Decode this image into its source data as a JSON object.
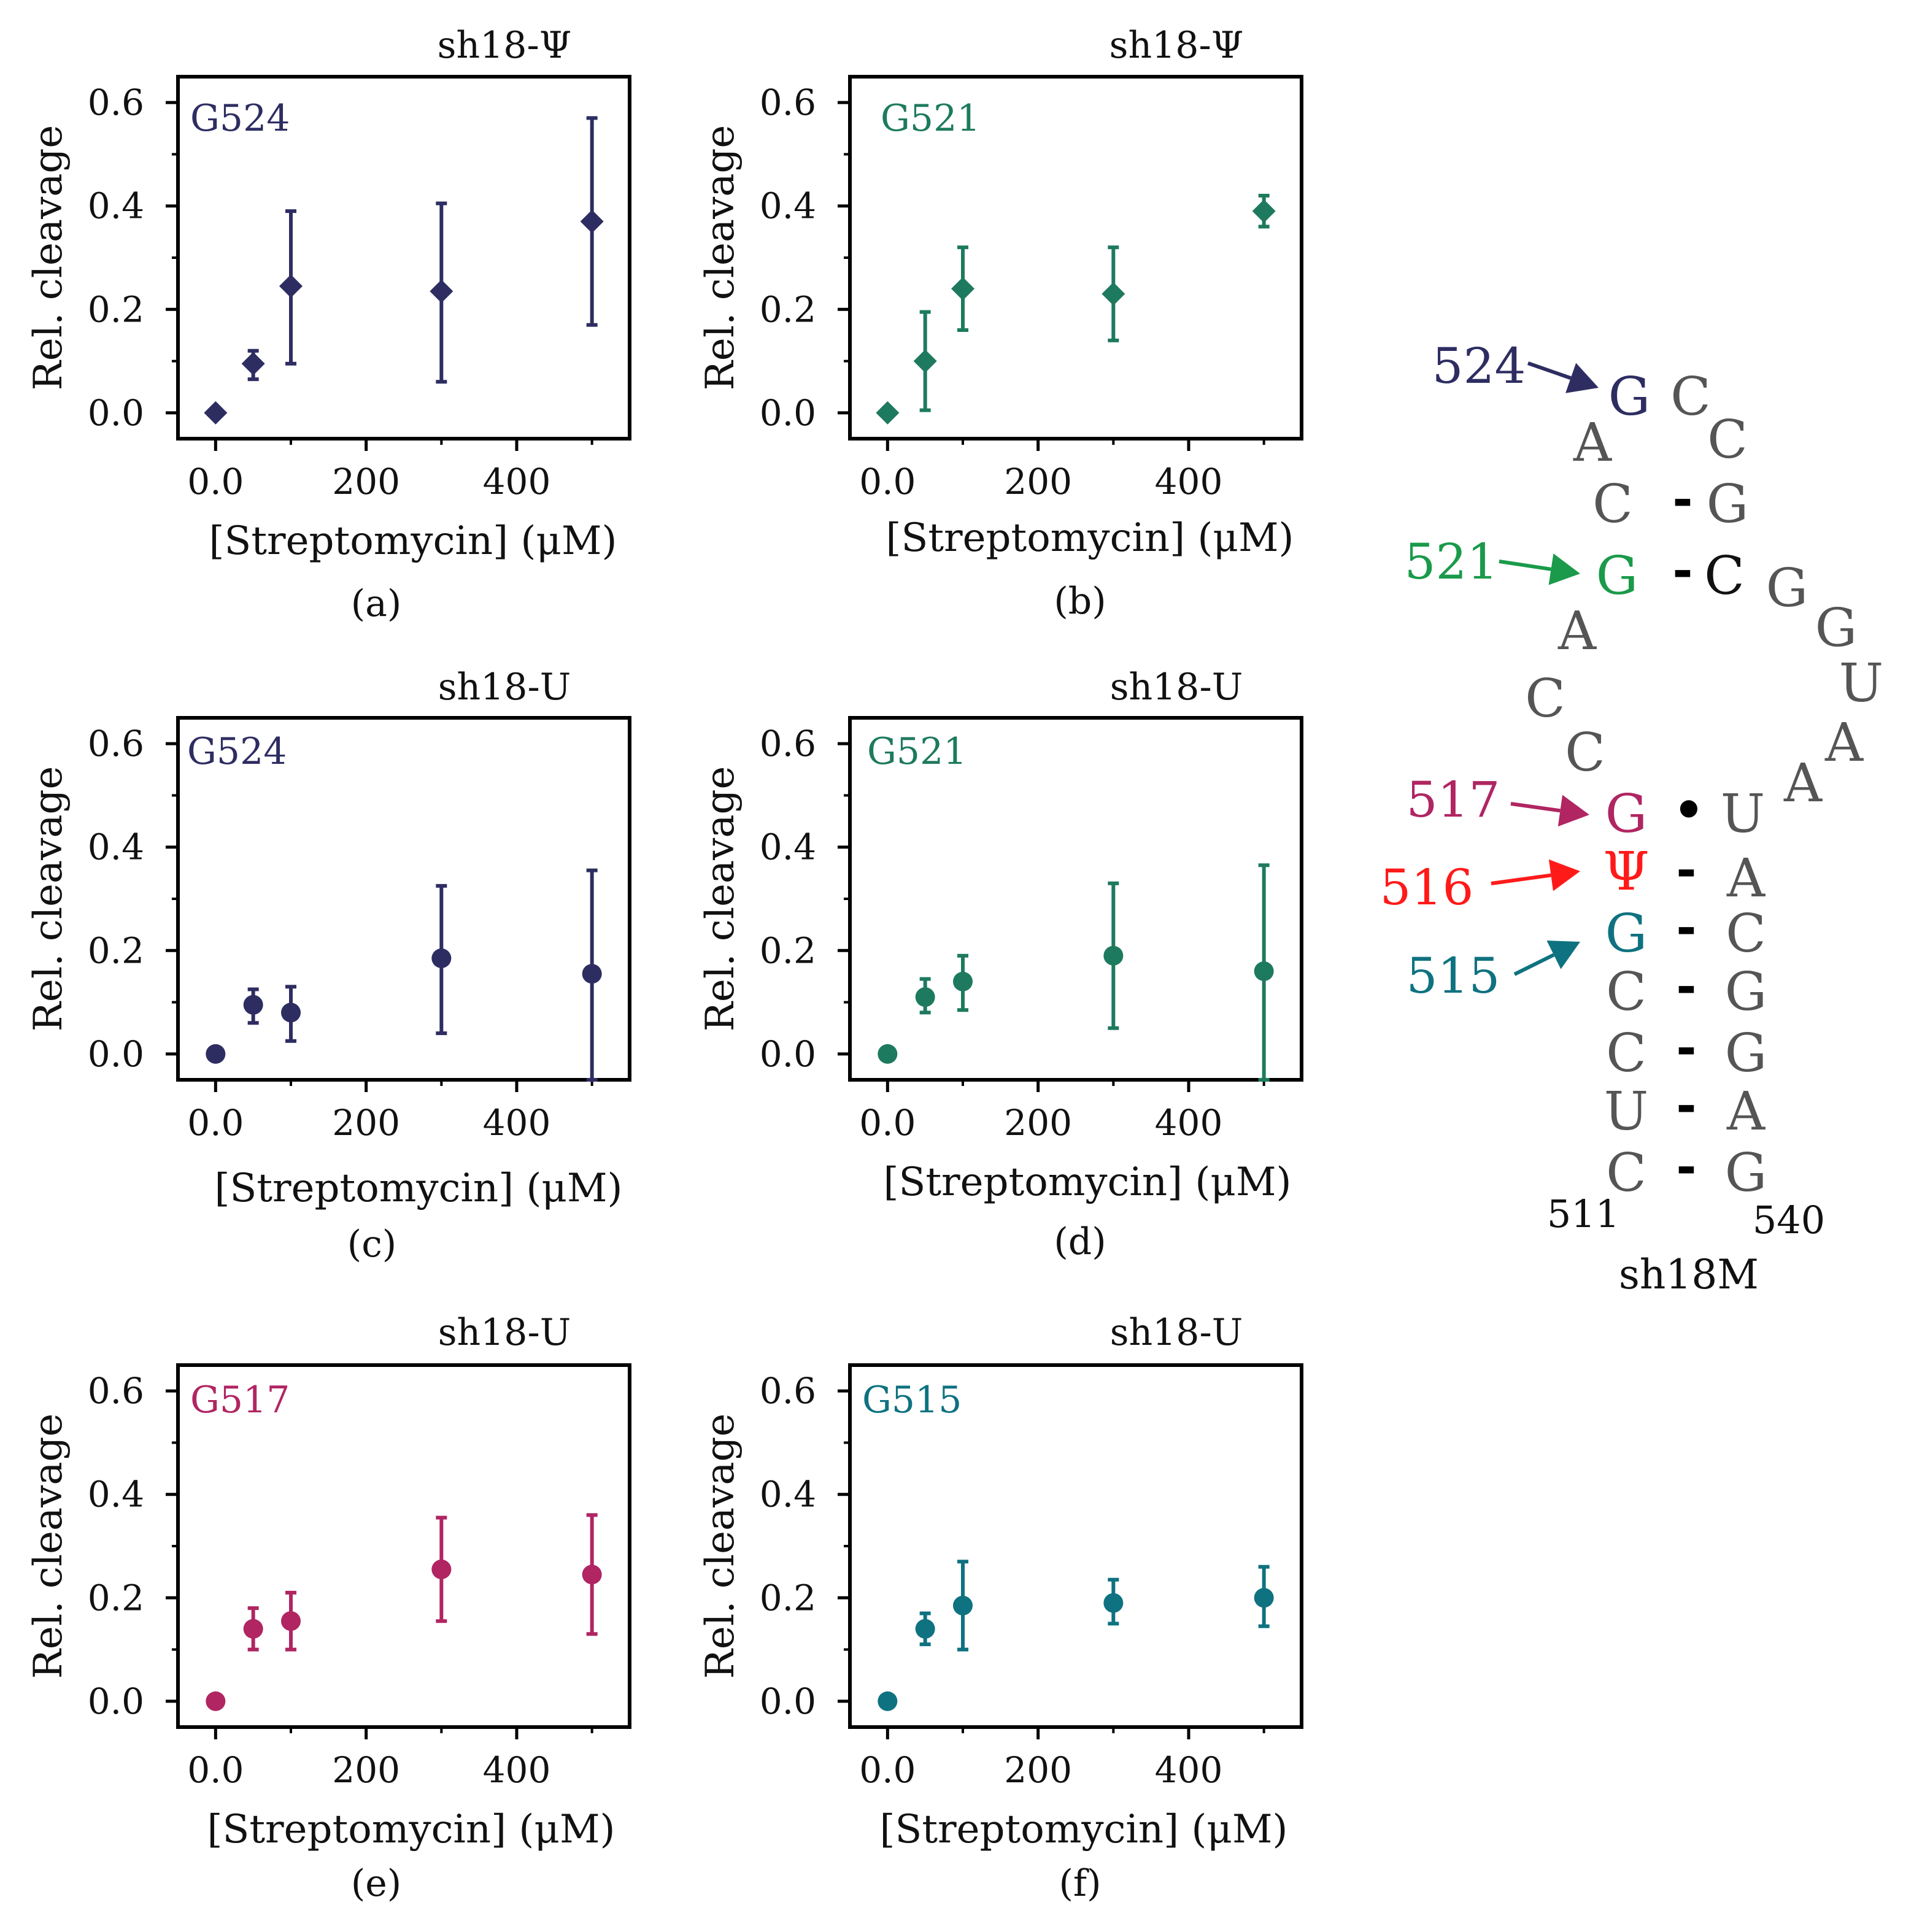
{
  "chart_data": [
    {
      "type": "scatter",
      "panel_label": "(a)",
      "title": "sh18-Ψ",
      "inset_label": "G524",
      "color": "#2e2d62",
      "marker": "diamond",
      "xlabel": "[Streptomycin] (μM)",
      "ylabel": "Rel. cleavage",
      "xlim": [
        -50,
        550
      ],
      "ylim": [
        -0.05,
        0.65
      ],
      "xticks": [
        "0.0",
        "200",
        "400"
      ],
      "xtick_values": [
        0,
        200,
        400
      ],
      "yticks": [
        "0.0",
        "0.2",
        "0.4",
        "0.6"
      ],
      "ytick_values": [
        0,
        0.2,
        0.4,
        0.6
      ],
      "series": [
        {
          "name": "G524",
          "x": [
            0,
            50,
            100,
            300,
            500
          ],
          "y": [
            0.0,
            0.095,
            0.245,
            0.235,
            0.37
          ],
          "err_low": [
            0.0,
            0.065,
            0.095,
            0.06,
            0.17
          ],
          "err_high": [
            0.0,
            0.12,
            0.39,
            0.405,
            0.57
          ]
        }
      ]
    },
    {
      "type": "scatter",
      "panel_label": "(b)",
      "title": "sh18-Ψ",
      "inset_label": "G521",
      "color": "#1e7a5e",
      "marker": "diamond",
      "xlabel": "[Streptomycin] (μM)",
      "ylabel": "Rel. cleavage",
      "xlim": [
        -50,
        550
      ],
      "ylim": [
        -0.05,
        0.65
      ],
      "xticks": [
        "0.0",
        "200",
        "400"
      ],
      "xtick_values": [
        0,
        200,
        400
      ],
      "yticks": [
        "0.0",
        "0.2",
        "0.4",
        "0.6"
      ],
      "ytick_values": [
        0,
        0.2,
        0.4,
        0.6
      ],
      "series": [
        {
          "name": "G521",
          "x": [
            0,
            50,
            100,
            300,
            500
          ],
          "y": [
            0.0,
            0.1,
            0.24,
            0.23,
            0.39
          ],
          "err_low": [
            0.0,
            0.005,
            0.16,
            0.14,
            0.36
          ],
          "err_high": [
            0.0,
            0.195,
            0.32,
            0.32,
            0.42
          ]
        }
      ]
    },
    {
      "type": "scatter",
      "panel_label": "(c)",
      "title": "sh18-U",
      "inset_label": "G524",
      "color": "#2e2d62",
      "marker": "circle",
      "xlabel": "[Streptomycin] (μM)",
      "ylabel": "Rel. cleavage",
      "xlim": [
        -50,
        550
      ],
      "ylim": [
        -0.05,
        0.65
      ],
      "xticks": [
        "0.0",
        "200",
        "400"
      ],
      "xtick_values": [
        0,
        200,
        400
      ],
      "yticks": [
        "0.0",
        "0.2",
        "0.4",
        "0.6"
      ],
      "ytick_values": [
        0,
        0.2,
        0.4,
        0.6
      ],
      "series": [
        {
          "name": "G524",
          "x": [
            0,
            50,
            100,
            300,
            500
          ],
          "y": [
            0.0,
            0.095,
            0.08,
            0.185,
            0.155
          ],
          "err_low": [
            0.0,
            0.06,
            0.025,
            0.04,
            -0.05
          ],
          "err_high": [
            0.0,
            0.125,
            0.13,
            0.325,
            0.355
          ]
        }
      ]
    },
    {
      "type": "scatter",
      "panel_label": "(d)",
      "title": "sh18-U",
      "inset_label": "G521",
      "color": "#1e7a5e",
      "marker": "circle",
      "xlabel": "[Streptomycin] (μM)",
      "ylabel": "Rel. cleavage",
      "xlim": [
        -50,
        550
      ],
      "ylim": [
        -0.05,
        0.65
      ],
      "xticks": [
        "0.0",
        "200",
        "400"
      ],
      "xtick_values": [
        0,
        200,
        400
      ],
      "yticks": [
        "0.0",
        "0.2",
        "0.4",
        "0.6"
      ],
      "ytick_values": [
        0,
        0.2,
        0.4,
        0.6
      ],
      "series": [
        {
          "name": "G521",
          "x": [
            0,
            50,
            100,
            300,
            500
          ],
          "y": [
            0.0,
            0.11,
            0.14,
            0.19,
            0.16
          ],
          "err_low": [
            0.0,
            0.08,
            0.085,
            0.05,
            -0.05
          ],
          "err_high": [
            0.0,
            0.145,
            0.19,
            0.33,
            0.365
          ]
        }
      ]
    },
    {
      "type": "scatter",
      "panel_label": "(e)",
      "title": "sh18-U",
      "inset_label": "G517",
      "color": "#b02562",
      "marker": "circle",
      "xlabel": "[Streptomycin] (μM)",
      "ylabel": "Rel. cleavage",
      "xlim": [
        -50,
        550
      ],
      "ylim": [
        -0.05,
        0.65
      ],
      "xticks": [
        "0.0",
        "200",
        "400"
      ],
      "xtick_values": [
        0,
        200,
        400
      ],
      "yticks": [
        "0.0",
        "0.2",
        "0.4",
        "0.6"
      ],
      "ytick_values": [
        0,
        0.2,
        0.4,
        0.6
      ],
      "series": [
        {
          "name": "G517",
          "x": [
            0,
            50,
            100,
            300,
            500
          ],
          "y": [
            0.0,
            0.14,
            0.155,
            0.255,
            0.245
          ],
          "err_low": [
            0.0,
            0.1,
            0.1,
            0.155,
            0.13
          ],
          "err_high": [
            0.0,
            0.18,
            0.21,
            0.355,
            0.36
          ]
        }
      ]
    },
    {
      "type": "scatter",
      "panel_label": "(f)",
      "title": "sh18-U",
      "inset_label": "G515",
      "color": "#0f7280",
      "marker": "circle",
      "xlabel": "[Streptomycin] (μM)",
      "ylabel": "Rel. cleavage",
      "xlim": [
        -50,
        550
      ],
      "ylim": [
        -0.05,
        0.65
      ],
      "xticks": [
        "0.0",
        "200",
        "400"
      ],
      "xtick_values": [
        0,
        200,
        400
      ],
      "yticks": [
        "0.0",
        "0.2",
        "0.4",
        "0.6"
      ],
      "ytick_values": [
        0,
        0.2,
        0.4,
        0.6
      ],
      "series": [
        {
          "name": "G515",
          "x": [
            0,
            50,
            100,
            300,
            500
          ],
          "y": [
            0.0,
            0.14,
            0.185,
            0.19,
            0.2
          ],
          "err_low": [
            0.0,
            0.11,
            0.1,
            0.15,
            0.145
          ],
          "err_high": [
            0.0,
            0.17,
            0.27,
            0.235,
            0.26
          ]
        }
      ]
    }
  ],
  "structure": {
    "title": "sh18M",
    "bases": [
      "G",
      "C",
      "C",
      "A",
      "C",
      "G",
      "G",
      "C",
      "G",
      "A",
      "G",
      "C",
      "U",
      "C",
      "A",
      "A",
      "G",
      "U",
      "Ψ",
      "A",
      "G",
      "C",
      "C",
      "G",
      "C",
      "G",
      "U",
      "A",
      "C",
      "G"
    ],
    "base_colors": [
      "#2e2d62",
      "#555555",
      "#555555",
      "#555555",
      "#555555",
      "#555555",
      "#1a9a4a",
      "#111111",
      "#555555",
      "#555555",
      "#555555",
      "#555555",
      "#555555",
      "#555555",
      "#555555",
      "#555555",
      "#b02562",
      "#555555",
      "#ff1a1a",
      "#555555",
      "#0f7280",
      "#555555",
      "#555555",
      "#555555",
      "#555555",
      "#555555",
      "#555555",
      "#555555",
      "#555555",
      "#555555"
    ],
    "pairs": [
      "-",
      "-",
      "•",
      "-",
      "-",
      "-",
      "-",
      "-",
      "-"
    ],
    "arrows": [
      {
        "label": "524",
        "color": "#2e2d62"
      },
      {
        "label": "521",
        "color": "#1a9a4a"
      },
      {
        "label": "517",
        "color": "#b02562"
      },
      {
        "label": "516",
        "color": "#ff1a1a"
      },
      {
        "label": "515",
        "color": "#0f7280"
      }
    ],
    "end_labels": [
      "511",
      "540"
    ]
  }
}
